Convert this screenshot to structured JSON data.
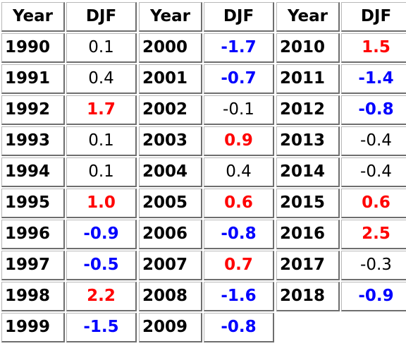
{
  "table": {
    "header": {
      "year": "Year",
      "djf": "DJF"
    },
    "columns": [
      {
        "rows": [
          {
            "year": "1990",
            "djf": "0.1"
          },
          {
            "year": "1991",
            "djf": "0.4"
          },
          {
            "year": "1992",
            "djf": "1.7"
          },
          {
            "year": "1993",
            "djf": "0.1"
          },
          {
            "year": "1994",
            "djf": "0.1"
          },
          {
            "year": "1995",
            "djf": "1.0"
          },
          {
            "year": "1996",
            "djf": "-0.9"
          },
          {
            "year": "1997",
            "djf": "-0.5"
          },
          {
            "year": "1998",
            "djf": "2.2"
          },
          {
            "year": "1999",
            "djf": "-1.5"
          }
        ]
      },
      {
        "rows": [
          {
            "year": "2000",
            "djf": "-1.7"
          },
          {
            "year": "2001",
            "djf": "-0.7"
          },
          {
            "year": "2002",
            "djf": "-0.1"
          },
          {
            "year": "2003",
            "djf": "0.9"
          },
          {
            "year": "2004",
            "djf": "0.4"
          },
          {
            "year": "2005",
            "djf": "0.6"
          },
          {
            "year": "2006",
            "djf": "-0.8"
          },
          {
            "year": "2007",
            "djf": "0.7"
          },
          {
            "year": "2008",
            "djf": "-1.6"
          },
          {
            "year": "2009",
            "djf": "-0.8"
          }
        ]
      },
      {
        "rows": [
          {
            "year": "2010",
            "djf": "1.5"
          },
          {
            "year": "2011",
            "djf": "-1.4"
          },
          {
            "year": "2012",
            "djf": "-0.8"
          },
          {
            "year": "2013",
            "djf": "-0.4"
          },
          {
            "year": "2014",
            "djf": "-0.4"
          },
          {
            "year": "2015",
            "djf": "0.6"
          },
          {
            "year": "2016",
            "djf": "2.5"
          },
          {
            "year": "2017",
            "djf": "-0.3"
          },
          {
            "year": "2018",
            "djf": "-0.9"
          }
        ]
      }
    ]
  },
  "colors": {
    "warm": "#ff0000",
    "cool": "#0000ff",
    "neutral": "#000000"
  }
}
